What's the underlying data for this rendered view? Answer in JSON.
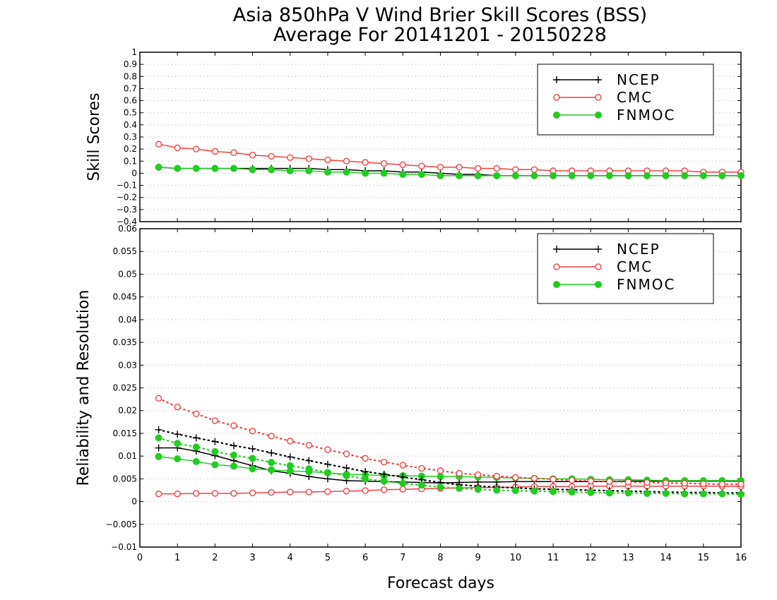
{
  "chart_data": {
    "title": "Asia 850hPa V Wind Brier Skill Scores (BSS)",
    "subtitle": "Average For 20141201 - 20150228",
    "xlabel": "Forecast days",
    "x": [
      0.5,
      1,
      1.5,
      2,
      2.5,
      3,
      3.5,
      4,
      4.5,
      5,
      5.5,
      6,
      6.5,
      7,
      7.5,
      8,
      8.5,
      9,
      9.5,
      10,
      10.5,
      11,
      11.5,
      12,
      12.5,
      13,
      13.5,
      14,
      14.5,
      15,
      15.5,
      16
    ],
    "xlim": [
      0,
      16
    ],
    "x_ticks": [
      0,
      1,
      2,
      3,
      4,
      5,
      6,
      7,
      8,
      9,
      10,
      11,
      12,
      13,
      14,
      15,
      16
    ],
    "x_tick_labels": [
      "0",
      "1",
      "2",
      "3",
      "4",
      "5",
      "6",
      "7",
      "8",
      "9",
      "10",
      "11",
      "12",
      "13",
      "14",
      "15",
      "16"
    ],
    "legend": [
      {
        "name": "NCEP",
        "color": "#000000",
        "marker": "plus"
      },
      {
        "name": "CMC",
        "color": "#f04040",
        "marker": "open-circle"
      },
      {
        "name": "FNMOC",
        "color": "#22cc22",
        "marker": "filled-circle"
      }
    ],
    "panels": [
      {
        "type": "line",
        "ylabel": "Skill Scores",
        "ylim": [
          -0.4,
          1
        ],
        "y_ticks": [
          -0.4,
          -0.3,
          -0.2,
          -0.1,
          0,
          0.1,
          0.2,
          0.3,
          0.4,
          0.5,
          0.6,
          0.7,
          0.8,
          0.9,
          1
        ],
        "y_tick_labels": [
          "−0.4",
          "−0.3",
          "−0.2",
          "−0.1",
          "0",
          "0.1",
          "0.2",
          "0.3",
          "0.4",
          "0.5",
          "0.6",
          "0.7",
          "0.8",
          "0.9",
          "1"
        ],
        "grid": "horizontal dotted",
        "legend_position": "top-right",
        "series": [
          {
            "name": "NCEP",
            "style": "solid",
            "marker": "plus",
            "color": "#000000",
            "values": [
              0.05,
              0.04,
              0.04,
              0.04,
              0.04,
              0.04,
              0.04,
              0.04,
              0.04,
              0.03,
              0.03,
              0.02,
              0.02,
              0.01,
              0.01,
              0.0,
              -0.01,
              -0.01,
              -0.02,
              -0.02,
              -0.02,
              -0.02,
              -0.02,
              -0.02,
              -0.02,
              -0.02,
              -0.02,
              -0.02,
              -0.02,
              -0.02,
              -0.02,
              -0.02
            ]
          },
          {
            "name": "CMC",
            "style": "solid",
            "marker": "open-circle",
            "color": "#f04040",
            "values": [
              0.24,
              0.21,
              0.2,
              0.18,
              0.17,
              0.15,
              0.14,
              0.13,
              0.12,
              0.11,
              0.1,
              0.09,
              0.08,
              0.07,
              0.06,
              0.05,
              0.05,
              0.04,
              0.04,
              0.03,
              0.03,
              0.02,
              0.02,
              0.02,
              0.02,
              0.02,
              0.02,
              0.02,
              0.02,
              0.01,
              0.01,
              0.01
            ]
          },
          {
            "name": "FNMOC",
            "style": "solid",
            "marker": "filled-circle",
            "color": "#22cc22",
            "values": [
              0.05,
              0.04,
              0.04,
              0.04,
              0.04,
              0.03,
              0.03,
              0.02,
              0.02,
              0.01,
              0.01,
              0.0,
              0.0,
              -0.01,
              -0.01,
              -0.02,
              -0.02,
              -0.02,
              -0.02,
              -0.02,
              -0.02,
              -0.02,
              -0.02,
              -0.02,
              -0.02,
              -0.02,
              -0.02,
              -0.02,
              -0.02,
              -0.02,
              -0.02,
              -0.02
            ]
          }
        ]
      },
      {
        "type": "line",
        "ylabel": "Reliability and Resolution",
        "ylim": [
          -0.01,
          0.06
        ],
        "y_ticks": [
          -0.01,
          -0.005,
          0,
          0.005,
          0.01,
          0.015,
          0.02,
          0.025,
          0.03,
          0.035,
          0.04,
          0.045,
          0.05,
          0.055,
          0.06
        ],
        "y_tick_labels": [
          "−0.01",
          "−0.005",
          "0",
          "0.005",
          "0.01",
          "0.015",
          "0.02",
          "0.025",
          "0.03",
          "0.035",
          "0.04",
          "0.045",
          "0.05",
          "0.055",
          "0.06"
        ],
        "grid": "horizontal dotted",
        "legend_position": "top-right",
        "series": [
          {
            "name": "NCEP",
            "style": "solid",
            "marker": "plus",
            "color": "#000000",
            "values": [
              0.0118,
              0.0118,
              0.0111,
              0.0101,
              0.009,
              0.0079,
              0.0068,
              0.0062,
              0.0055,
              0.005,
              0.0046,
              0.0045,
              0.0044,
              0.0043,
              0.0042,
              0.0041,
              0.0042,
              0.0043,
              0.0043,
              0.0044,
              0.0044,
              0.0044,
              0.0044,
              0.0044,
              0.0044,
              0.0045,
              0.0045,
              0.0045,
              0.0045,
              0.0045,
              0.0045,
              0.0045
            ]
          },
          {
            "name": "CMC",
            "style": "solid",
            "marker": "open-circle",
            "color": "#f04040",
            "values": [
              0.0017,
              0.0017,
              0.0018,
              0.0018,
              0.0018,
              0.0019,
              0.002,
              0.0021,
              0.0021,
              0.0022,
              0.0023,
              0.0024,
              0.0026,
              0.0027,
              0.0028,
              0.0029,
              0.003,
              0.0031,
              0.0031,
              0.0032,
              0.0033,
              0.0033,
              0.0033,
              0.0034,
              0.0034,
              0.0034,
              0.0034,
              0.0034,
              0.0034,
              0.0034,
              0.0034,
              0.0033
            ]
          },
          {
            "name": "FNMOC",
            "style": "solid",
            "marker": "filled-circle",
            "color": "#22cc22",
            "values": [
              0.0099,
              0.0094,
              0.0088,
              0.0081,
              0.0078,
              0.0072,
              0.007,
              0.0067,
              0.0066,
              0.0063,
              0.006,
              0.0059,
              0.0057,
              0.0057,
              0.0056,
              0.0055,
              0.0055,
              0.0054,
              0.0053,
              0.0052,
              0.0051,
              0.005,
              0.005,
              0.0049,
              0.0048,
              0.0048,
              0.0047,
              0.0046,
              0.0046,
              0.0046,
              0.0046,
              0.0046
            ]
          },
          {
            "name": "NCEP",
            "style": "dotted",
            "marker": "plus",
            "color": "#000000",
            "values": [
              0.0158,
              0.0148,
              0.014,
              0.0132,
              0.0123,
              0.0116,
              0.0107,
              0.0098,
              0.009,
              0.0082,
              0.0074,
              0.0066,
              0.006,
              0.0054,
              0.0048,
              0.0042,
              0.0037,
              0.0034,
              0.0032,
              0.003,
              0.0028,
              0.0027,
              0.0026,
              0.0025,
              0.0024,
              0.0023,
              0.0022,
              0.0021,
              0.002,
              0.002,
              0.0019,
              0.0019
            ]
          },
          {
            "name": "CMC",
            "style": "dotted",
            "marker": "open-circle",
            "color": "#f04040",
            "values": [
              0.0227,
              0.0208,
              0.0193,
              0.0178,
              0.0167,
              0.0155,
              0.0144,
              0.0133,
              0.0124,
              0.0114,
              0.0105,
              0.0095,
              0.0087,
              0.008,
              0.0073,
              0.0068,
              0.0062,
              0.0059,
              0.0056,
              0.0053,
              0.0051,
              0.0049,
              0.0047,
              0.0045,
              0.0044,
              0.0043,
              0.0042,
              0.0041,
              0.004,
              0.0039,
              0.0038,
              0.0038
            ]
          },
          {
            "name": "FNMOC",
            "style": "dotted",
            "marker": "filled-circle",
            "color": "#22cc22",
            "values": [
              0.014,
              0.0128,
              0.012,
              0.011,
              0.0102,
              0.0095,
              0.0086,
              0.0079,
              0.0072,
              0.0064,
              0.0057,
              0.005,
              0.0045,
              0.004,
              0.0036,
              0.0032,
              0.0029,
              0.0027,
              0.0025,
              0.0024,
              0.0023,
              0.0022,
              0.0021,
              0.002,
              0.0019,
              0.0019,
              0.0018,
              0.0018,
              0.0017,
              0.0017,
              0.0017,
              0.0016
            ]
          }
        ]
      }
    ]
  }
}
